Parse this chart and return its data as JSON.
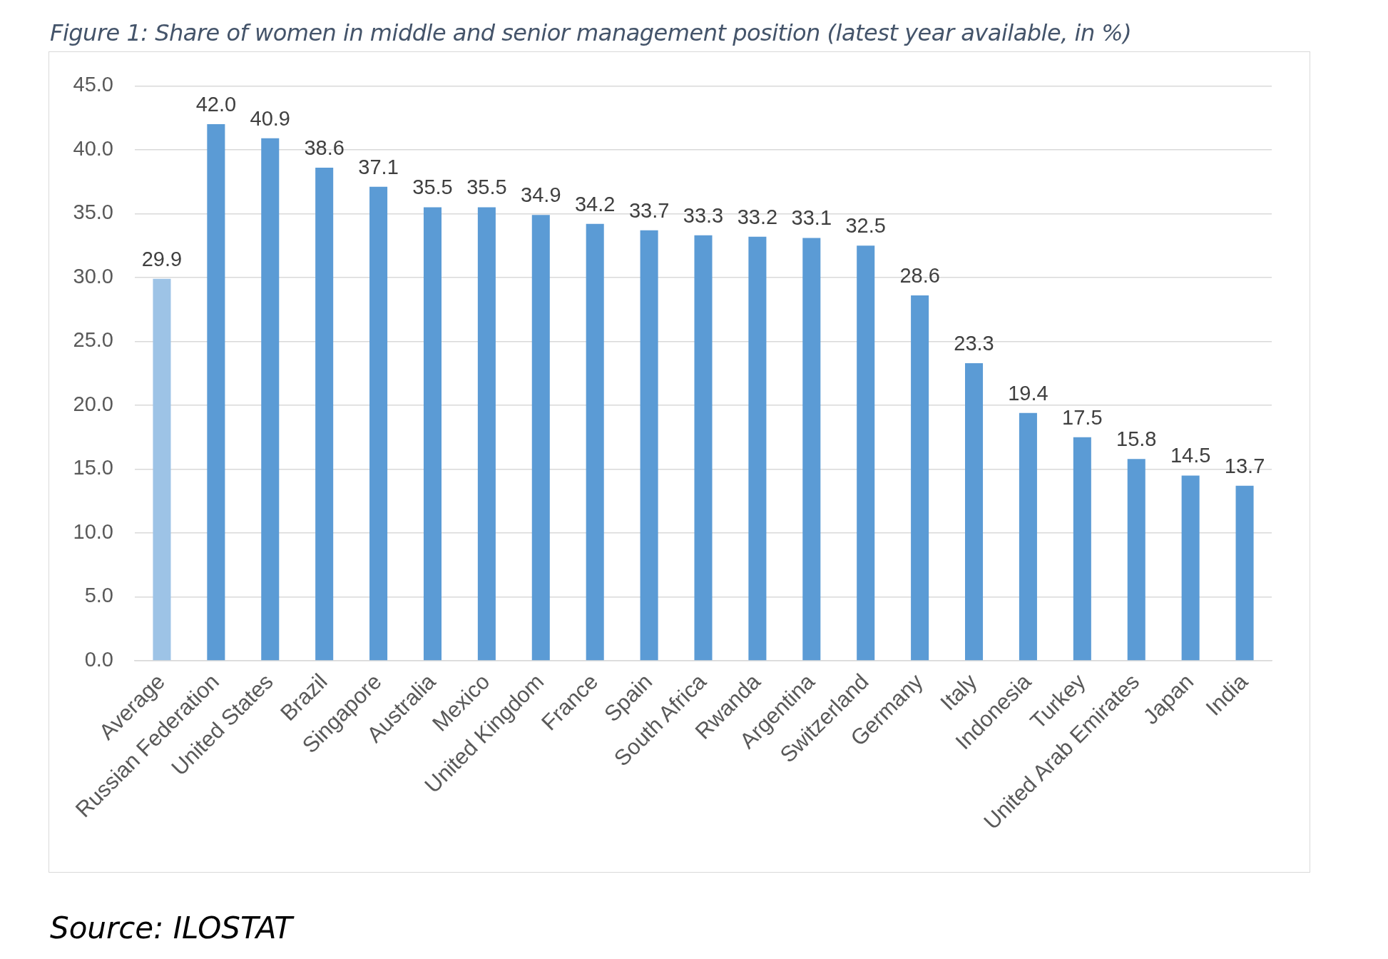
{
  "chart_data": {
    "type": "bar",
    "title": "Figure 1: Share of women in middle and senior management position (latest year available, in %)",
    "categories": [
      "Average",
      "Russian Federation",
      "United States",
      "Brazil",
      "Singapore",
      "Australia",
      "Mexico",
      "United Kingdom",
      "France",
      "Spain",
      "South Africa",
      "Rwanda",
      "Argentina",
      "Switzerland",
      "Germany",
      "Italy",
      "Indonesia",
      "Turkey",
      "United Arab Emirates",
      "Japan",
      "India"
    ],
    "values": [
      29.9,
      42.0,
      40.9,
      38.6,
      37.1,
      35.5,
      35.5,
      34.9,
      34.2,
      33.7,
      33.3,
      33.2,
      33.1,
      32.5,
      28.6,
      23.3,
      19.4,
      17.5,
      15.8,
      14.5,
      13.7
    ],
    "value_labels": [
      "29.9",
      "42.0",
      "40.9",
      "38.6",
      "37.1",
      "35.5",
      "35.5",
      "34.9",
      "34.2",
      "33.7",
      "33.3",
      "33.2",
      "33.1",
      "32.5",
      "28.6",
      "23.3",
      "19.4",
      "17.5",
      "15.8",
      "14.5",
      "13.7"
    ],
    "colors": [
      "#9dc3e6",
      "#5b9bd5",
      "#5b9bd5",
      "#5b9bd5",
      "#5b9bd5",
      "#5b9bd5",
      "#5b9bd5",
      "#5b9bd5",
      "#5b9bd5",
      "#5b9bd5",
      "#5b9bd5",
      "#5b9bd5",
      "#5b9bd5",
      "#5b9bd5",
      "#5b9bd5",
      "#5b9bd5",
      "#5b9bd5",
      "#5b9bd5",
      "#5b9bd5",
      "#5b9bd5",
      "#5b9bd5"
    ],
    "ylim": [
      0,
      45
    ],
    "yticks": [
      {
        "value": 0,
        "label": "0.0"
      },
      {
        "value": 5,
        "label": "5.0"
      },
      {
        "value": 10,
        "label": "10.0"
      },
      {
        "value": 15,
        "label": "15.0"
      },
      {
        "value": 20,
        "label": "20.0"
      },
      {
        "value": 25,
        "label": "25.0"
      },
      {
        "value": 30,
        "label": "30.0"
      },
      {
        "value": 35,
        "label": "35.0"
      },
      {
        "value": 40,
        "label": "40.0"
      },
      {
        "value": 45,
        "label": "45.0"
      }
    ],
    "grid": "y",
    "annotations": [
      "Source: ILOSTAT"
    ]
  }
}
